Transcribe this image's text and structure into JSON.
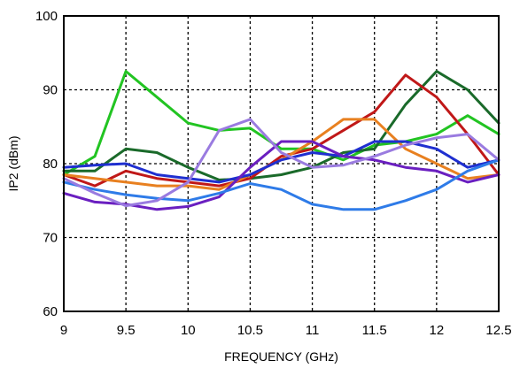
{
  "chart_data": {
    "type": "line",
    "title": "",
    "xlabel": "FREQUENCY (GHz)",
    "ylabel": "IP2  (dBm)",
    "xlim": [
      9,
      12.5
    ],
    "ylim": [
      60,
      100
    ],
    "xticks": [
      9,
      9.5,
      10,
      10.5,
      11,
      11.5,
      12,
      12.5
    ],
    "yticks": [
      60,
      70,
      80,
      90,
      100
    ],
    "xtick_labels": [
      "9",
      "9.5",
      "10",
      "10.5",
      "11",
      "11.5",
      "12",
      "12.5"
    ],
    "ytick_labels": [
      "60",
      "70",
      "80",
      "90",
      "100"
    ],
    "grid": true,
    "x": [
      9,
      9.25,
      9.5,
      9.75,
      10,
      10.25,
      10.5,
      10.75,
      11,
      11.25,
      11.5,
      11.75,
      12,
      12.25,
      12.5
    ],
    "series": [
      {
        "color": "#22c422",
        "values": [
          78.5,
          81.0,
          92.5,
          89.0,
          85.5,
          84.5,
          84.8,
          82.0,
          82.0,
          80.5,
          82.5,
          83.0,
          84.0,
          86.5,
          84.0
        ]
      },
      {
        "color": "#1a6a2a",
        "values": [
          79.0,
          79.0,
          82.0,
          81.5,
          79.5,
          77.8,
          78.0,
          78.5,
          79.5,
          81.5,
          82.0,
          88.0,
          92.5,
          90.0,
          85.5
        ]
      },
      {
        "color": "#c01818",
        "values": [
          78.5,
          77.0,
          79.0,
          78.0,
          77.5,
          77.0,
          78.0,
          81.0,
          82.0,
          84.5,
          87.0,
          92.0,
          89.0,
          84.0,
          78.5
        ]
      },
      {
        "color": "#e88020",
        "values": [
          78.5,
          78.0,
          77.5,
          77.0,
          77.0,
          76.5,
          78.5,
          80.5,
          83.0,
          86.0,
          86.0,
          82.0,
          80.0,
          78.0,
          78.5
        ]
      },
      {
        "color": "#1f2fd0",
        "values": [
          79.5,
          79.8,
          80.0,
          78.5,
          78.0,
          77.5,
          78.5,
          80.5,
          81.5,
          81.0,
          83.0,
          83.0,
          82.0,
          79.5,
          80.5
        ]
      },
      {
        "color": "#6a1fc0",
        "values": [
          76.0,
          74.8,
          74.5,
          73.8,
          74.2,
          75.5,
          79.5,
          83.0,
          83.0,
          81.0,
          80.5,
          79.5,
          79.0,
          77.5,
          78.5
        ]
      },
      {
        "color": "#2e7be8",
        "values": [
          77.5,
          76.5,
          75.8,
          75.3,
          75.0,
          76.0,
          77.3,
          76.5,
          74.5,
          73.8,
          73.8,
          75.0,
          76.5,
          79.0,
          80.5
        ]
      },
      {
        "color": "#9a7be0",
        "values": [
          78.0,
          76.0,
          74.3,
          75.0,
          77.5,
          84.5,
          86.0,
          81.5,
          79.5,
          79.8,
          81.0,
          82.5,
          83.5,
          84.0,
          80.5
        ]
      }
    ]
  }
}
